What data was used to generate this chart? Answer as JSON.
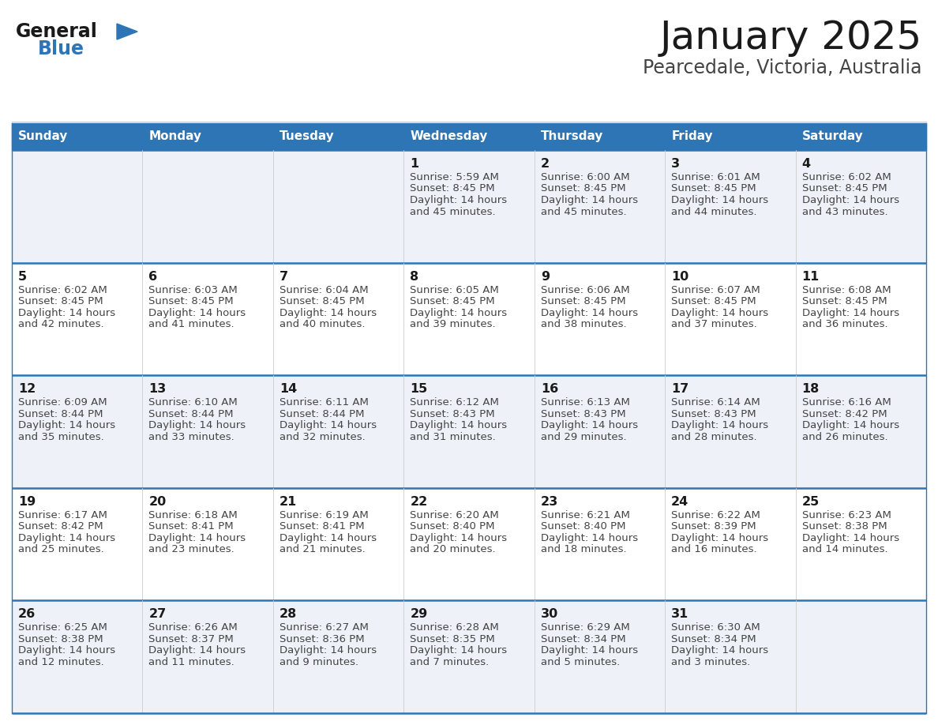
{
  "title": "January 2025",
  "subtitle": "Pearcedale, Victoria, Australia",
  "header_bg": "#2e75b6",
  "header_text": "#ffffff",
  "cell_bg_odd": "#eef2f8",
  "cell_bg_even": "#ffffff",
  "border_color": "#2e75b6",
  "row_top_border": "#2e75b6",
  "day_names": [
    "Sunday",
    "Monday",
    "Tuesday",
    "Wednesday",
    "Thursday",
    "Friday",
    "Saturday"
  ],
  "title_color": "#1a1a1a",
  "subtitle_color": "#444444",
  "day_num_color": "#1a1a1a",
  "cell_text_color": "#444444",
  "logo_general_color": "#1a1a1a",
  "logo_blue_color": "#2e75b6",
  "calendar_data": [
    [
      null,
      null,
      null,
      {
        "day": 1,
        "sunrise": "5:59 AM",
        "sunset": "8:45 PM",
        "daylight": "14 hours and 45 minutes"
      },
      {
        "day": 2,
        "sunrise": "6:00 AM",
        "sunset": "8:45 PM",
        "daylight": "14 hours and 45 minutes"
      },
      {
        "day": 3,
        "sunrise": "6:01 AM",
        "sunset": "8:45 PM",
        "daylight": "14 hours and 44 minutes"
      },
      {
        "day": 4,
        "sunrise": "6:02 AM",
        "sunset": "8:45 PM",
        "daylight": "14 hours and 43 minutes"
      }
    ],
    [
      {
        "day": 5,
        "sunrise": "6:02 AM",
        "sunset": "8:45 PM",
        "daylight": "14 hours and 42 minutes"
      },
      {
        "day": 6,
        "sunrise": "6:03 AM",
        "sunset": "8:45 PM",
        "daylight": "14 hours and 41 minutes"
      },
      {
        "day": 7,
        "sunrise": "6:04 AM",
        "sunset": "8:45 PM",
        "daylight": "14 hours and 40 minutes"
      },
      {
        "day": 8,
        "sunrise": "6:05 AM",
        "sunset": "8:45 PM",
        "daylight": "14 hours and 39 minutes"
      },
      {
        "day": 9,
        "sunrise": "6:06 AM",
        "sunset": "8:45 PM",
        "daylight": "14 hours and 38 minutes"
      },
      {
        "day": 10,
        "sunrise": "6:07 AM",
        "sunset": "8:45 PM",
        "daylight": "14 hours and 37 minutes"
      },
      {
        "day": 11,
        "sunrise": "6:08 AM",
        "sunset": "8:45 PM",
        "daylight": "14 hours and 36 minutes"
      }
    ],
    [
      {
        "day": 12,
        "sunrise": "6:09 AM",
        "sunset": "8:44 PM",
        "daylight": "14 hours and 35 minutes"
      },
      {
        "day": 13,
        "sunrise": "6:10 AM",
        "sunset": "8:44 PM",
        "daylight": "14 hours and 33 minutes"
      },
      {
        "day": 14,
        "sunrise": "6:11 AM",
        "sunset": "8:44 PM",
        "daylight": "14 hours and 32 minutes"
      },
      {
        "day": 15,
        "sunrise": "6:12 AM",
        "sunset": "8:43 PM",
        "daylight": "14 hours and 31 minutes"
      },
      {
        "day": 16,
        "sunrise": "6:13 AM",
        "sunset": "8:43 PM",
        "daylight": "14 hours and 29 minutes"
      },
      {
        "day": 17,
        "sunrise": "6:14 AM",
        "sunset": "8:43 PM",
        "daylight": "14 hours and 28 minutes"
      },
      {
        "day": 18,
        "sunrise": "6:16 AM",
        "sunset": "8:42 PM",
        "daylight": "14 hours and 26 minutes"
      }
    ],
    [
      {
        "day": 19,
        "sunrise": "6:17 AM",
        "sunset": "8:42 PM",
        "daylight": "14 hours and 25 minutes"
      },
      {
        "day": 20,
        "sunrise": "6:18 AM",
        "sunset": "8:41 PM",
        "daylight": "14 hours and 23 minutes"
      },
      {
        "day": 21,
        "sunrise": "6:19 AM",
        "sunset": "8:41 PM",
        "daylight": "14 hours and 21 minutes"
      },
      {
        "day": 22,
        "sunrise": "6:20 AM",
        "sunset": "8:40 PM",
        "daylight": "14 hours and 20 minutes"
      },
      {
        "day": 23,
        "sunrise": "6:21 AM",
        "sunset": "8:40 PM",
        "daylight": "14 hours and 18 minutes"
      },
      {
        "day": 24,
        "sunrise": "6:22 AM",
        "sunset": "8:39 PM",
        "daylight": "14 hours and 16 minutes"
      },
      {
        "day": 25,
        "sunrise": "6:23 AM",
        "sunset": "8:38 PM",
        "daylight": "14 hours and 14 minutes"
      }
    ],
    [
      {
        "day": 26,
        "sunrise": "6:25 AM",
        "sunset": "8:38 PM",
        "daylight": "14 hours and 12 minutes"
      },
      {
        "day": 27,
        "sunrise": "6:26 AM",
        "sunset": "8:37 PM",
        "daylight": "14 hours and 11 minutes"
      },
      {
        "day": 28,
        "sunrise": "6:27 AM",
        "sunset": "8:36 PM",
        "daylight": "14 hours and 9 minutes"
      },
      {
        "day": 29,
        "sunrise": "6:28 AM",
        "sunset": "8:35 PM",
        "daylight": "14 hours and 7 minutes"
      },
      {
        "day": 30,
        "sunrise": "6:29 AM",
        "sunset": "8:34 PM",
        "daylight": "14 hours and 5 minutes"
      },
      {
        "day": 31,
        "sunrise": "6:30 AM",
        "sunset": "8:34 PM",
        "daylight": "14 hours and 3 minutes"
      },
      null
    ]
  ]
}
